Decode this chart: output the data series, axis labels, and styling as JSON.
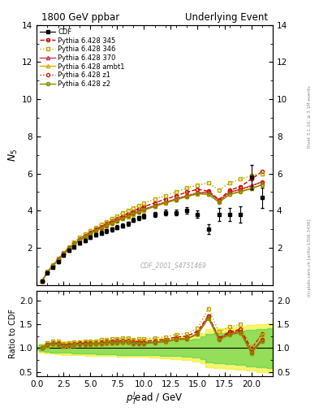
{
  "title_left": "1800 GeV ppbar",
  "title_right": "Underlying Event",
  "ylabel_main": "$N_5$",
  "ylabel_ratio": "Ratio to CDF",
  "xlabel": "$p_T^l$ead / GeV",
  "watermark": "CDF_2001_S4751469",
  "rivet_text": "Rivet 3.1.10; ≥ 3.1M events",
  "mcplots_text": "mcplots.cern.ch [arXiv:1306.3436]",
  "ylim_main": [
    0,
    14
  ],
  "ylim_ratio": [
    0.4,
    2.2
  ],
  "yticks_main": [
    2,
    4,
    6,
    8,
    10,
    12,
    14
  ],
  "yticks_ratio": [
    0.5,
    1.0,
    1.5,
    2.0
  ],
  "xlim": [
    0,
    22
  ],
  "cdf_x": [
    0.5,
    1.0,
    1.5,
    2.0,
    2.5,
    3.0,
    3.5,
    4.0,
    4.5,
    5.0,
    5.5,
    6.0,
    6.5,
    7.0,
    7.5,
    8.0,
    8.5,
    9.0,
    9.5,
    10.0,
    11.0,
    12.0,
    13.0,
    14.0,
    15.0,
    16.0,
    17.0,
    18.0,
    19.0,
    20.0,
    21.0
  ],
  "cdf_y": [
    0.22,
    0.65,
    0.95,
    1.25,
    1.6,
    1.85,
    2.05,
    2.25,
    2.4,
    2.55,
    2.7,
    2.8,
    2.9,
    3.0,
    3.1,
    3.2,
    3.3,
    3.5,
    3.6,
    3.7,
    3.8,
    3.9,
    3.9,
    4.0,
    3.8,
    3.0,
    3.8,
    3.8,
    3.8,
    5.8,
    4.7
  ],
  "cdf_yerr": [
    0.05,
    0.06,
    0.06,
    0.07,
    0.07,
    0.08,
    0.08,
    0.09,
    0.09,
    0.09,
    0.1,
    0.1,
    0.1,
    0.11,
    0.11,
    0.11,
    0.12,
    0.12,
    0.12,
    0.13,
    0.14,
    0.15,
    0.16,
    0.18,
    0.2,
    0.25,
    0.35,
    0.35,
    0.45,
    0.65,
    0.55
  ],
  "mc_x": [
    0.5,
    1.0,
    1.5,
    2.0,
    2.5,
    3.0,
    3.5,
    4.0,
    4.5,
    5.0,
    5.5,
    6.0,
    6.5,
    7.0,
    7.5,
    8.0,
    8.5,
    9.0,
    9.5,
    10.0,
    11.0,
    12.0,
    13.0,
    14.0,
    15.0,
    16.0,
    17.0,
    18.0,
    19.0,
    20.0,
    21.0
  ],
  "p345_y": [
    0.22,
    0.7,
    1.05,
    1.38,
    1.7,
    2.0,
    2.25,
    2.48,
    2.65,
    2.82,
    3.0,
    3.15,
    3.3,
    3.45,
    3.58,
    3.72,
    3.85,
    3.98,
    4.1,
    4.22,
    4.42,
    4.62,
    4.8,
    5.0,
    5.15,
    5.05,
    4.6,
    5.1,
    5.3,
    5.7,
    6.1
  ],
  "p346_y": [
    0.22,
    0.72,
    1.08,
    1.42,
    1.75,
    2.05,
    2.32,
    2.55,
    2.75,
    2.92,
    3.1,
    3.28,
    3.42,
    3.58,
    3.72,
    3.88,
    4.02,
    4.15,
    4.28,
    4.4,
    4.62,
    4.82,
    5.02,
    5.22,
    5.38,
    5.5,
    5.1,
    5.5,
    5.7,
    5.9,
    6.0
  ],
  "p370_y": [
    0.22,
    0.69,
    1.03,
    1.35,
    1.67,
    1.95,
    2.2,
    2.42,
    2.6,
    2.77,
    2.94,
    3.08,
    3.22,
    3.35,
    3.47,
    3.6,
    3.72,
    3.84,
    3.96,
    4.07,
    4.27,
    4.46,
    4.63,
    4.8,
    4.95,
    5.0,
    4.55,
    5.0,
    5.15,
    5.35,
    5.55
  ],
  "pambt1_y": [
    0.22,
    0.68,
    1.02,
    1.34,
    1.65,
    1.93,
    2.18,
    2.4,
    2.58,
    2.74,
    2.9,
    3.05,
    3.18,
    3.31,
    3.44,
    3.56,
    3.68,
    3.8,
    3.91,
    4.02,
    4.22,
    4.41,
    4.58,
    4.75,
    4.9,
    4.9,
    4.48,
    4.9,
    5.05,
    5.2,
    5.4
  ],
  "pz1_y": [
    0.22,
    0.7,
    1.04,
    1.37,
    1.68,
    1.96,
    2.22,
    2.44,
    2.62,
    2.79,
    2.96,
    3.1,
    3.24,
    3.37,
    3.5,
    3.62,
    3.74,
    3.86,
    3.97,
    4.08,
    4.28,
    4.47,
    4.64,
    4.82,
    4.97,
    5.0,
    4.55,
    5.0,
    5.15,
    5.3,
    5.55
  ],
  "pz2_y": [
    0.22,
    0.69,
    1.03,
    1.35,
    1.66,
    1.94,
    2.2,
    2.42,
    2.6,
    2.76,
    2.93,
    3.07,
    3.2,
    3.33,
    3.45,
    3.58,
    3.7,
    3.82,
    3.93,
    4.04,
    4.24,
    4.43,
    4.6,
    4.77,
    4.92,
    4.88,
    4.45,
    4.88,
    5.02,
    5.18,
    5.4
  ],
  "p345_color": "#cc0000",
  "p346_color": "#bbaa00",
  "p370_color": "#cc3355",
  "pambt1_color": "#ddaa00",
  "pz1_color": "#cc2200",
  "pz2_color": "#888800",
  "band_yellow": "#eeee00",
  "band_green": "#44cc44",
  "band_yellow_alpha": 0.55,
  "band_green_alpha": 0.55,
  "cdf_band_x": [
    0.0,
    0.5,
    1.0,
    1.5,
    2.0,
    2.5,
    3.0,
    3.5,
    4.0,
    5.0,
    6.0,
    7.0,
    8.0,
    9.0,
    10.0,
    11.0,
    12.0,
    13.0,
    14.0,
    15.0,
    15.5,
    16.0,
    17.0,
    18.0,
    19.0,
    20.0,
    21.0,
    22.0
  ],
  "cdf_band_lo_y": [
    0.95,
    0.9,
    0.89,
    0.88,
    0.87,
    0.86,
    0.86,
    0.85,
    0.85,
    0.84,
    0.83,
    0.83,
    0.82,
    0.82,
    0.81,
    0.8,
    0.79,
    0.77,
    0.75,
    0.72,
    0.68,
    0.6,
    0.58,
    0.56,
    0.54,
    0.52,
    0.5,
    0.48
  ],
  "cdf_band_hi_y": [
    1.05,
    1.1,
    1.11,
    1.12,
    1.13,
    1.14,
    1.14,
    1.15,
    1.15,
    1.16,
    1.17,
    1.17,
    1.18,
    1.18,
    1.19,
    1.2,
    1.21,
    1.23,
    1.25,
    1.28,
    1.32,
    1.4,
    1.42,
    1.44,
    1.46,
    1.48,
    1.5,
    1.52
  ],
  "cdf_gband_lo_y": [
    0.97,
    0.93,
    0.92,
    0.91,
    0.91,
    0.9,
    0.9,
    0.89,
    0.89,
    0.88,
    0.87,
    0.87,
    0.86,
    0.86,
    0.85,
    0.85,
    0.84,
    0.83,
    0.82,
    0.8,
    0.76,
    0.7,
    0.68,
    0.66,
    0.64,
    0.62,
    0.6,
    0.58
  ],
  "cdf_gband_hi_y": [
    1.03,
    1.07,
    1.08,
    1.09,
    1.09,
    1.1,
    1.1,
    1.11,
    1.11,
    1.12,
    1.13,
    1.13,
    1.14,
    1.14,
    1.15,
    1.15,
    1.16,
    1.17,
    1.18,
    1.2,
    1.24,
    1.3,
    1.32,
    1.34,
    1.36,
    1.38,
    1.4,
    1.42
  ]
}
